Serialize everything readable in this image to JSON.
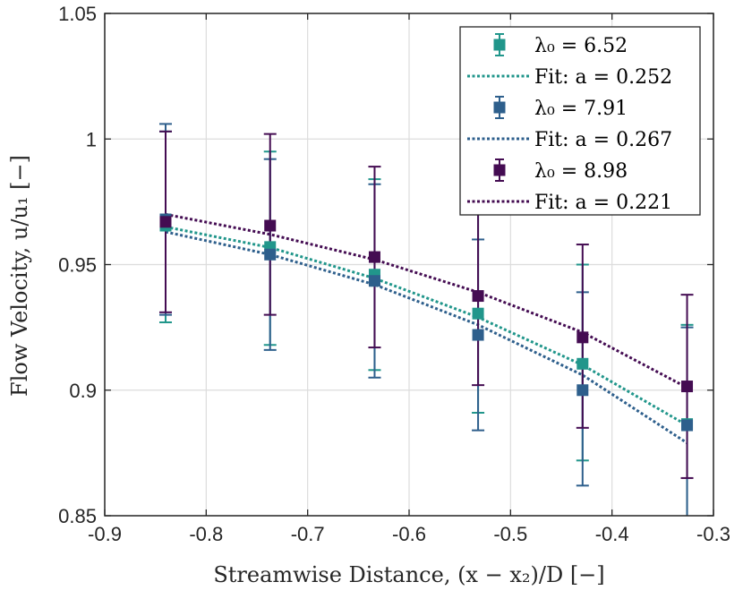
{
  "chart_data": {
    "type": "scatter",
    "xlabel": "Streamwise Distance, (x − x₂)/D [−]",
    "ylabel": "Flow Velocity, u/u₁ [−]",
    "xlim": [
      -0.9,
      -0.3
    ],
    "ylim": [
      0.85,
      1.05
    ],
    "xticks": [
      "-0.9",
      "-0.8",
      "-0.7",
      "-0.6",
      "-0.5",
      "-0.4",
      "-0.3"
    ],
    "yticks": [
      "0.85",
      "0.9",
      "0.95",
      "1",
      "1.05"
    ],
    "grid": true,
    "legend_position": "top-right",
    "series": [
      {
        "name": "λ₀ = 6.52",
        "lambda": "6.52",
        "color": "#21968b",
        "fit_label": "Fit: a = 0.252",
        "fit_a": "0.252",
        "x": [
          -0.84,
          -0.737,
          -0.634,
          -0.532,
          -0.429,
          -0.326
        ],
        "y": [
          0.9655,
          0.957,
          0.946,
          0.9305,
          0.9105,
          0.8865
        ],
        "err_low": [
          0.927,
          0.918,
          0.908,
          0.891,
          0.872,
          0.848
        ],
        "err_high": [
          1.003,
          0.995,
          0.984,
          0.97,
          0.95,
          0.926
        ],
        "fit_y": [
          0.965,
          0.9568,
          0.9445,
          0.929,
          0.91,
          0.886
        ]
      },
      {
        "name": "λ₀ = 7.91",
        "lambda": "7.91",
        "color": "#2e5f8c",
        "fit_label": "Fit: a = 0.267",
        "fit_a": "0.267",
        "x": [
          -0.84,
          -0.737,
          -0.634,
          -0.532,
          -0.429,
          -0.326
        ],
        "y": [
          0.968,
          0.954,
          0.9435,
          0.922,
          0.9,
          0.886
        ],
        "err_low": [
          0.93,
          0.916,
          0.905,
          0.884,
          0.862,
          0.848
        ],
        "err_high": [
          1.006,
          0.992,
          0.982,
          0.96,
          0.939,
          0.925
        ],
        "fit_y": [
          0.963,
          0.954,
          0.942,
          0.926,
          0.906,
          0.879
        ]
      },
      {
        "name": "λ₀ = 8.98",
        "lambda": "8.98",
        "color": "#440c52",
        "fit_label": "Fit: a = 0.221",
        "fit_a": "0.221",
        "x": [
          -0.84,
          -0.737,
          -0.634,
          -0.532,
          -0.429,
          -0.326
        ],
        "y": [
          0.967,
          0.9655,
          0.953,
          0.9375,
          0.921,
          0.9015
        ],
        "err_low": [
          0.931,
          0.93,
          0.917,
          0.902,
          0.885,
          0.865
        ],
        "err_high": [
          1.003,
          1.002,
          0.989,
          0.974,
          0.958,
          0.938
        ],
        "fit_y": [
          0.97,
          0.962,
          0.952,
          0.939,
          0.923,
          0.901
        ]
      }
    ]
  }
}
